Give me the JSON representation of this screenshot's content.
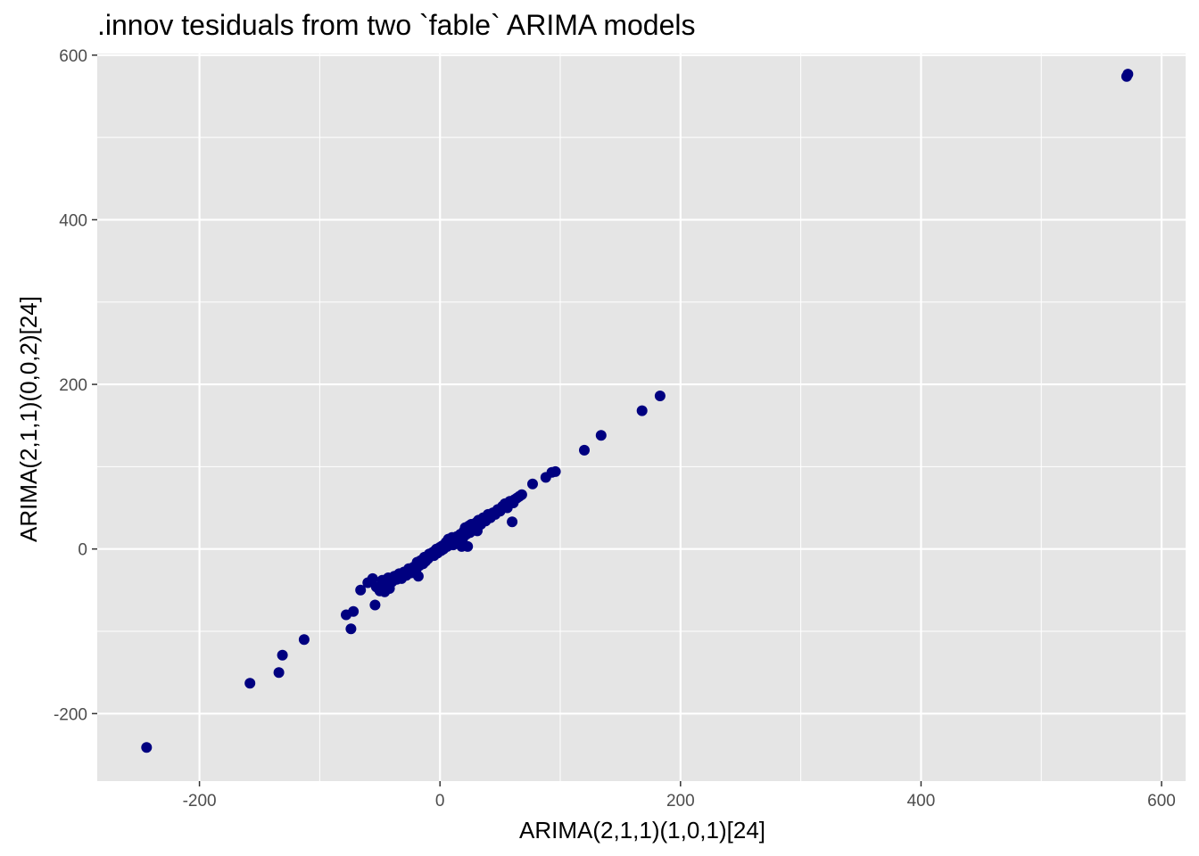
{
  "chart_data": {
    "type": "scatter",
    "title": ".innov tesiduals from two `fable` ARIMA models",
    "xlabel": "ARIMA(2,1,1)(1,0,1)[24]",
    "ylabel": "ARIMA(2,1,1)(0,0,2)[24]",
    "xlim": [
      -285,
      620
    ],
    "ylim": [
      -282,
      602
    ],
    "x_ticks": [
      -200,
      0,
      200,
      400,
      600
    ],
    "x_tick_labels": [
      "-200",
      "0",
      "200",
      "400",
      "600"
    ],
    "y_ticks": [
      -200,
      0,
      200,
      400,
      600
    ],
    "y_tick_labels": [
      "-200",
      "0",
      "200",
      "400",
      "600"
    ],
    "grid": true,
    "colors": {
      "panel": "#e5e5e5",
      "grid": "#ffffff",
      "point": "#000080"
    },
    "points": [
      [
        -244,
        -241
      ],
      [
        -158,
        -163
      ],
      [
        -134,
        -150
      ],
      [
        -131,
        -129
      ],
      [
        -113,
        -110
      ],
      [
        -78,
        -80
      ],
      [
        -74,
        -97
      ],
      [
        -72,
        -76
      ],
      [
        -66,
        -50
      ],
      [
        -60,
        -41
      ],
      [
        -56,
        -36
      ],
      [
        -54,
        -68
      ],
      [
        -53,
        -46
      ],
      [
        -50,
        -51
      ],
      [
        -48,
        -38
      ],
      [
        -46,
        -52
      ],
      [
        -45,
        -44
      ],
      [
        -43,
        -35
      ],
      [
        -42,
        -48
      ],
      [
        -40,
        -40
      ],
      [
        -38,
        -33
      ],
      [
        -36,
        -37
      ],
      [
        -34,
        -30
      ],
      [
        -32,
        -36
      ],
      [
        -30,
        -28
      ],
      [
        -28,
        -32
      ],
      [
        -26,
        -24
      ],
      [
        -24,
        -29
      ],
      [
        -22,
        -22
      ],
      [
        -20,
        -26
      ],
      [
        -19,
        -16
      ],
      [
        -18,
        -33
      ],
      [
        -17,
        -20
      ],
      [
        -16,
        -14
      ],
      [
        -14,
        -18
      ],
      [
        -13,
        -10
      ],
      [
        -12,
        -15
      ],
      [
        -10,
        -12
      ],
      [
        -9,
        -6
      ],
      [
        -8,
        -9
      ],
      [
        -6,
        -4
      ],
      [
        -5,
        -8
      ],
      [
        -4,
        -2
      ],
      [
        -3,
        0
      ],
      [
        -2,
        -5
      ],
      [
        0,
        2
      ],
      [
        1,
        -2
      ],
      [
        2,
        4
      ],
      [
        3,
        0
      ],
      [
        5,
        8
      ],
      [
        6,
        3
      ],
      [
        7,
        12
      ],
      [
        8,
        6
      ],
      [
        10,
        14
      ],
      [
        11,
        5
      ],
      [
        12,
        10
      ],
      [
        14,
        15
      ],
      [
        15,
        8
      ],
      [
        16,
        12
      ],
      [
        17,
        18
      ],
      [
        18,
        3
      ],
      [
        19,
        13
      ],
      [
        20,
        22
      ],
      [
        21,
        26
      ],
      [
        22,
        18
      ],
      [
        23,
        3
      ],
      [
        24,
        28
      ],
      [
        25,
        20
      ],
      [
        26,
        30
      ],
      [
        28,
        24
      ],
      [
        30,
        32
      ],
      [
        31,
        22
      ],
      [
        32,
        35
      ],
      [
        34,
        30
      ],
      [
        36,
        38
      ],
      [
        38,
        34
      ],
      [
        40,
        42
      ],
      [
        42,
        38
      ],
      [
        44,
        44
      ],
      [
        46,
        42
      ],
      [
        48,
        48
      ],
      [
        50,
        46
      ],
      [
        52,
        52
      ],
      [
        54,
        55
      ],
      [
        56,
        50
      ],
      [
        58,
        58
      ],
      [
        60,
        33
      ],
      [
        61,
        56
      ],
      [
        62,
        60
      ],
      [
        64,
        62
      ],
      [
        66,
        64
      ],
      [
        68,
        66
      ],
      [
        77,
        79
      ],
      [
        88,
        87
      ],
      [
        93,
        93
      ],
      [
        96,
        94
      ],
      [
        120,
        120
      ],
      [
        134,
        138
      ],
      [
        168,
        168
      ],
      [
        183,
        186
      ],
      [
        571,
        574
      ],
      [
        572,
        577
      ]
    ]
  }
}
